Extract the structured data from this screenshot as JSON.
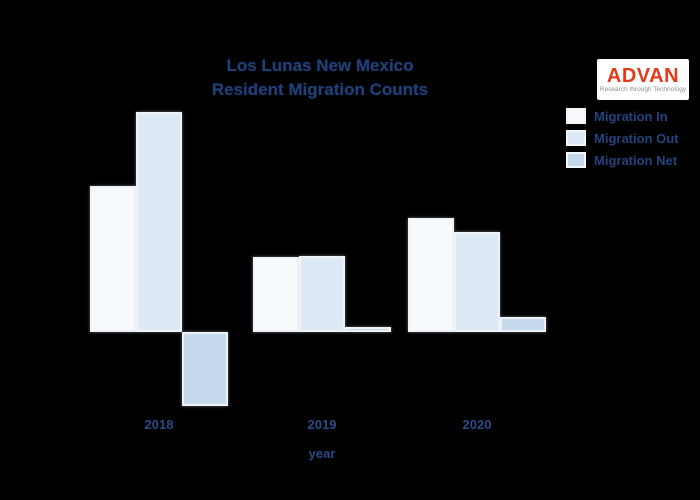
{
  "page": {
    "background": "#000000"
  },
  "title": {
    "line1": "Los Lunas New Mexico",
    "line2": "Resident Migration Counts"
  },
  "logo": {
    "brand": "ADVAN",
    "tagline": "Research through Technology",
    "brand_color": "#e5391b",
    "background": "#ffffff"
  },
  "legend": {
    "items": [
      {
        "label": "Migration In",
        "color": "#f6fafd"
      },
      {
        "label": "Migration Out",
        "color": "#dde9f5"
      },
      {
        "label": "Migration Net",
        "color": "#c6daee"
      }
    ]
  },
  "x_axis": {
    "label": "year",
    "ticks": [
      "2018",
      "2019",
      "2020"
    ]
  },
  "chart_data": {
    "type": "bar",
    "title": "Los Lunas New Mexico Resident Migration Counts",
    "xlabel": "year",
    "ylabel": "",
    "categories": [
      "2018",
      "2019",
      "2020"
    ],
    "series": [
      {
        "name": "Migration In",
        "values": [
          146,
          75,
          114
        ],
        "color": "#f6fafd"
      },
      {
        "name": "Migration Out",
        "values": [
          220,
          76,
          100
        ],
        "color": "#dde9f5"
      },
      {
        "name": "Migration Net",
        "values": [
          -74,
          5,
          15
        ],
        "color": "#c6daee"
      }
    ],
    "ylim": [
      -100,
      240
    ],
    "grid": false,
    "legend_position": "top-right",
    "units": "relative bar heights; no y-axis labels visible in figure"
  }
}
